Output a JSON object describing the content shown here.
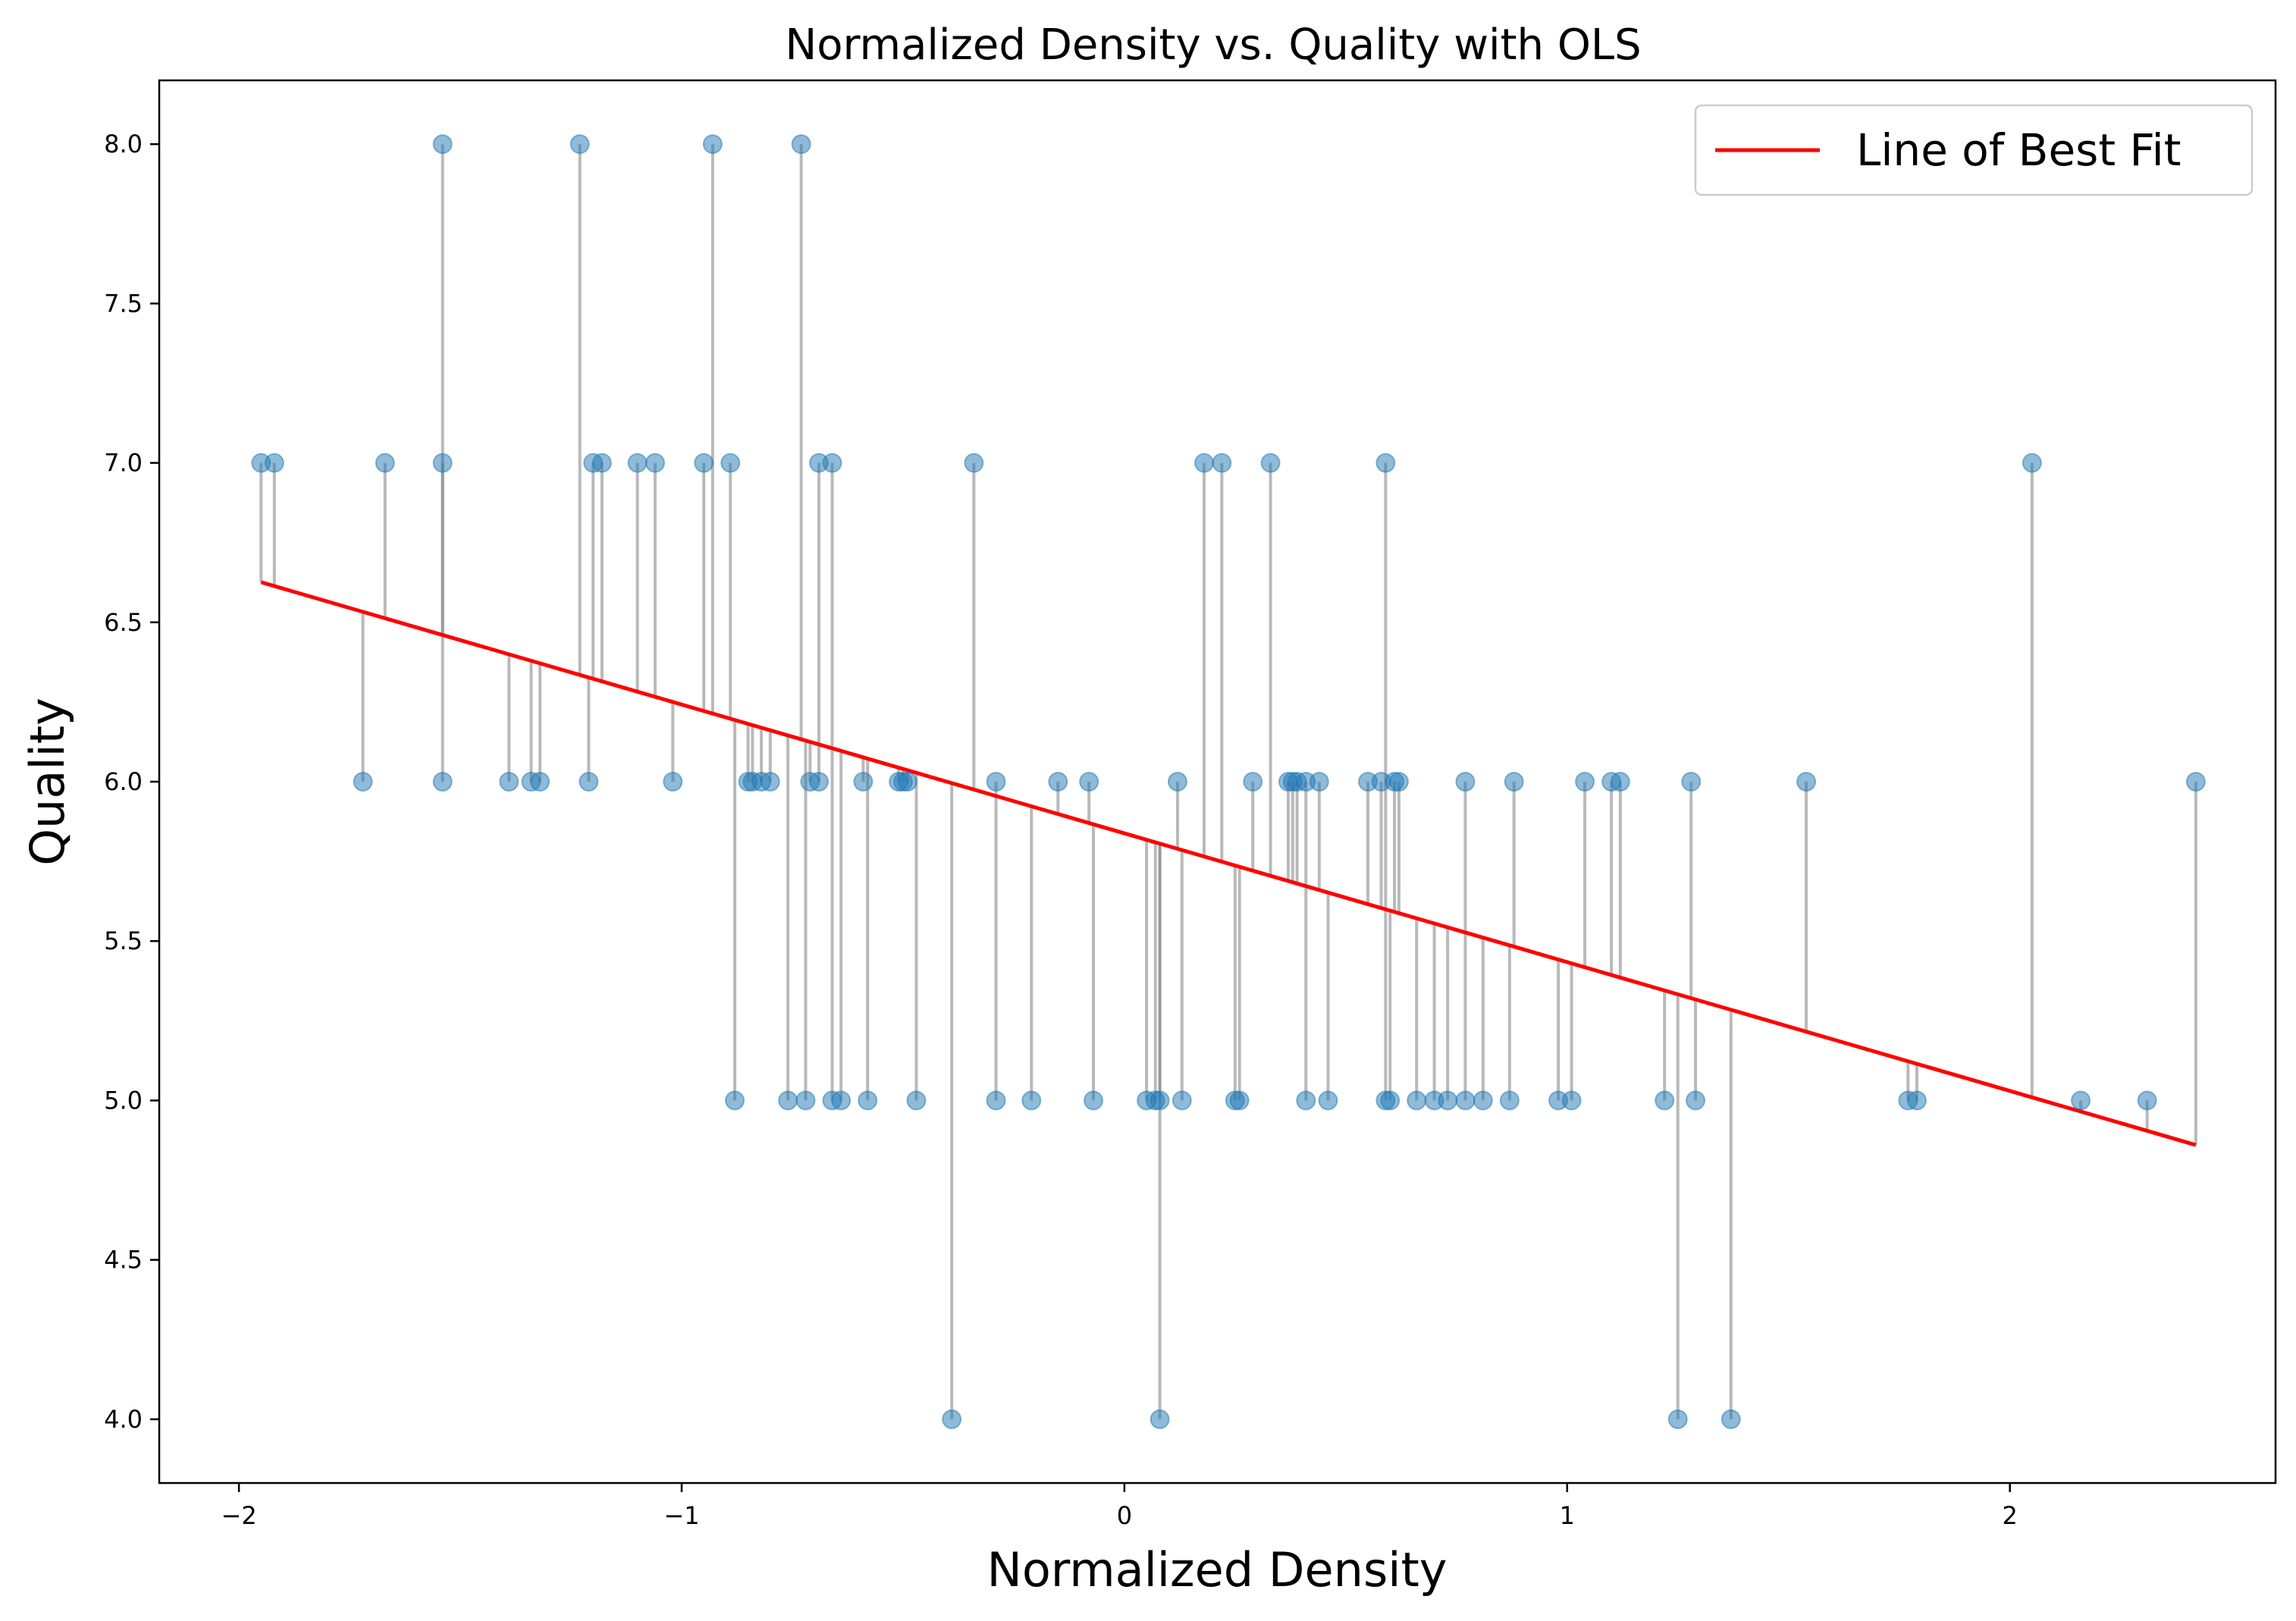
{
  "chart_data": {
    "type": "scatter",
    "title": "Normalized Density vs. Quality with OLS",
    "xlabel": "Normalized Density",
    "ylabel": "Quality",
    "xlim": [
      -2.18,
      2.6
    ],
    "ylim": [
      3.8,
      8.2
    ],
    "xticks": [
      -2,
      -1,
      0,
      1,
      2
    ],
    "xtick_labels": [
      "−2",
      "−1",
      "0",
      "1",
      "2"
    ],
    "yticks": [
      4.0,
      4.5,
      5.0,
      5.5,
      6.0,
      6.5,
      7.0,
      7.5,
      8.0
    ],
    "ytick_labels": [
      "4.0",
      "4.5",
      "5.0",
      "5.5",
      "6.0",
      "6.5",
      "7.0",
      "7.5",
      "8.0"
    ],
    "grid": false,
    "legend": {
      "position": "top-right",
      "entries": [
        "Line of Best Fit"
      ]
    },
    "colors": {
      "points": "#1f77b4",
      "fit_line": "#ff0000",
      "residuals": "#808080"
    },
    "fit_line": {
      "slope": -0.404,
      "intercept": 5.838,
      "x_range": [
        -1.95,
        2.42
      ]
    },
    "points": [
      {
        "x": -1.95,
        "y": 7
      },
      {
        "x": -1.92,
        "y": 7
      },
      {
        "x": -1.72,
        "y": 6
      },
      {
        "x": -1.67,
        "y": 7
      },
      {
        "x": -1.54,
        "y": 8
      },
      {
        "x": -1.54,
        "y": 7
      },
      {
        "x": -1.54,
        "y": 6
      },
      {
        "x": -1.39,
        "y": 6
      },
      {
        "x": -1.34,
        "y": 6
      },
      {
        "x": -1.32,
        "y": 6
      },
      {
        "x": -1.23,
        "y": 8
      },
      {
        "x": -1.21,
        "y": 6
      },
      {
        "x": -1.2,
        "y": 7
      },
      {
        "x": -1.18,
        "y": 7
      },
      {
        "x": -1.1,
        "y": 7
      },
      {
        "x": -1.06,
        "y": 7
      },
      {
        "x": -1.02,
        "y": 6
      },
      {
        "x": -0.95,
        "y": 7
      },
      {
        "x": -0.93,
        "y": 8
      },
      {
        "x": -0.89,
        "y": 7
      },
      {
        "x": -0.88,
        "y": 5
      },
      {
        "x": -0.85,
        "y": 6
      },
      {
        "x": -0.84,
        "y": 6
      },
      {
        "x": -0.82,
        "y": 6
      },
      {
        "x": -0.8,
        "y": 6
      },
      {
        "x": -0.76,
        "y": 5
      },
      {
        "x": -0.73,
        "y": 8
      },
      {
        "x": -0.72,
        "y": 5
      },
      {
        "x": -0.71,
        "y": 6
      },
      {
        "x": -0.69,
        "y": 7
      },
      {
        "x": -0.69,
        "y": 6
      },
      {
        "x": -0.66,
        "y": 7
      },
      {
        "x": -0.66,
        "y": 5
      },
      {
        "x": -0.64,
        "y": 5
      },
      {
        "x": -0.59,
        "y": 6
      },
      {
        "x": -0.58,
        "y": 5
      },
      {
        "x": -0.51,
        "y": 6
      },
      {
        "x": -0.5,
        "y": 6
      },
      {
        "x": -0.49,
        "y": 6
      },
      {
        "x": -0.47,
        "y": 5
      },
      {
        "x": -0.39,
        "y": 4
      },
      {
        "x": -0.34,
        "y": 7
      },
      {
        "x": -0.29,
        "y": 6
      },
      {
        "x": -0.29,
        "y": 5
      },
      {
        "x": -0.21,
        "y": 5
      },
      {
        "x": -0.15,
        "y": 6
      },
      {
        "x": -0.08,
        "y": 6
      },
      {
        "x": -0.07,
        "y": 5
      },
      {
        "x": 0.05,
        "y": 5
      },
      {
        "x": 0.07,
        "y": 5
      },
      {
        "x": 0.08,
        "y": 5
      },
      {
        "x": 0.08,
        "y": 4
      },
      {
        "x": 0.12,
        "y": 6
      },
      {
        "x": 0.13,
        "y": 5
      },
      {
        "x": 0.18,
        "y": 7
      },
      {
        "x": 0.22,
        "y": 7
      },
      {
        "x": 0.25,
        "y": 5
      },
      {
        "x": 0.26,
        "y": 5
      },
      {
        "x": 0.29,
        "y": 6
      },
      {
        "x": 0.33,
        "y": 7
      },
      {
        "x": 0.37,
        "y": 6
      },
      {
        "x": 0.38,
        "y": 6
      },
      {
        "x": 0.39,
        "y": 6
      },
      {
        "x": 0.41,
        "y": 6
      },
      {
        "x": 0.41,
        "y": 5
      },
      {
        "x": 0.44,
        "y": 6
      },
      {
        "x": 0.46,
        "y": 5
      },
      {
        "x": 0.55,
        "y": 6
      },
      {
        "x": 0.58,
        "y": 6
      },
      {
        "x": 0.59,
        "y": 7
      },
      {
        "x": 0.59,
        "y": 5
      },
      {
        "x": 0.6,
        "y": 5
      },
      {
        "x": 0.61,
        "y": 6
      },
      {
        "x": 0.62,
        "y": 6
      },
      {
        "x": 0.66,
        "y": 5
      },
      {
        "x": 0.7,
        "y": 5
      },
      {
        "x": 0.73,
        "y": 5
      },
      {
        "x": 0.77,
        "y": 6
      },
      {
        "x": 0.77,
        "y": 5
      },
      {
        "x": 0.81,
        "y": 5
      },
      {
        "x": 0.87,
        "y": 5
      },
      {
        "x": 0.88,
        "y": 6
      },
      {
        "x": 0.98,
        "y": 5
      },
      {
        "x": 1.01,
        "y": 5
      },
      {
        "x": 1.04,
        "y": 6
      },
      {
        "x": 1.1,
        "y": 6
      },
      {
        "x": 1.12,
        "y": 6
      },
      {
        "x": 1.22,
        "y": 5
      },
      {
        "x": 1.25,
        "y": 4
      },
      {
        "x": 1.28,
        "y": 6
      },
      {
        "x": 1.29,
        "y": 5
      },
      {
        "x": 1.37,
        "y": 4
      },
      {
        "x": 1.54,
        "y": 6
      },
      {
        "x": 1.77,
        "y": 5
      },
      {
        "x": 1.79,
        "y": 5
      },
      {
        "x": 2.05,
        "y": 7
      },
      {
        "x": 2.16,
        "y": 5
      },
      {
        "x": 2.31,
        "y": 5
      },
      {
        "x": 2.42,
        "y": 6
      }
    ]
  }
}
